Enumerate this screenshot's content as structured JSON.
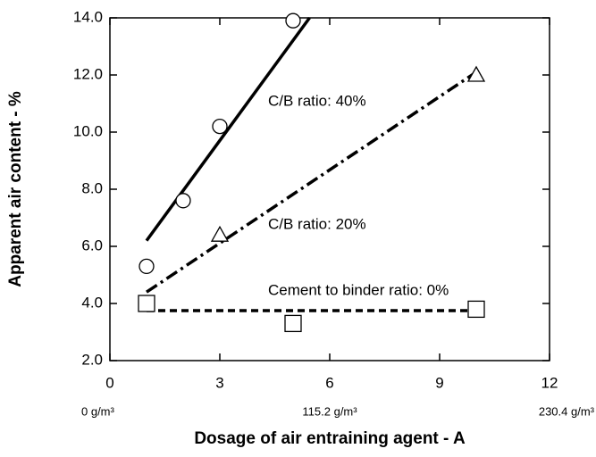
{
  "chart_data": {
    "type": "scatter",
    "xlabel": "Dosage of air entraining agent - A",
    "ylabel": "Apparent air content - %",
    "xlim": [
      0,
      12
    ],
    "xticks": [
      0,
      3,
      6,
      9,
      12
    ],
    "ylim": [
      2,
      14
    ],
    "yticks": [
      {
        "value": 2,
        "label": "2.0"
      },
      {
        "value": 4,
        "label": "4.0"
      },
      {
        "value": 6,
        "label": "6.0"
      },
      {
        "value": 8,
        "label": "8.0"
      },
      {
        "value": 10,
        "label": "10.0"
      },
      {
        "value": 12,
        "label": "12.0"
      },
      {
        "value": 14,
        "label": "14.0"
      }
    ],
    "x2ticks": [
      {
        "value": 0,
        "label": "0 g/m³"
      },
      {
        "value": 6,
        "label": "115.2 g/m³"
      },
      {
        "value": 12,
        "label": "230.4 g/m³"
      }
    ],
    "series": [
      {
        "marker": "circle",
        "color": "#000000",
        "x": [
          1,
          2,
          3,
          5
        ],
        "values": [
          5.3,
          7.6,
          10.2,
          13.9
        ]
      },
      {
        "marker": "triangle",
        "color": "#000000",
        "x": [
          3,
          10
        ],
        "values": [
          6.4,
          12.0
        ]
      },
      {
        "marker": "square",
        "color": "#000000",
        "x": [
          1,
          5,
          10
        ],
        "values": [
          4.0,
          3.3,
          3.8
        ]
      }
    ],
    "fits": [
      {
        "dash": "solid",
        "x": [
          1,
          5.45
        ],
        "values": [
          6.2,
          14
        ]
      },
      {
        "dash": "dashdot",
        "x": [
          1,
          10
        ],
        "values": [
          4.4,
          12.1
        ]
      },
      {
        "dash": "dashed",
        "x": [
          1,
          10
        ],
        "values": [
          3.75,
          3.75
        ]
      }
    ],
    "annotations": [
      "C/B ratio: 40%",
      "C/B ratio: 20%",
      "Cement to binder ratio: 0%"
    ]
  }
}
